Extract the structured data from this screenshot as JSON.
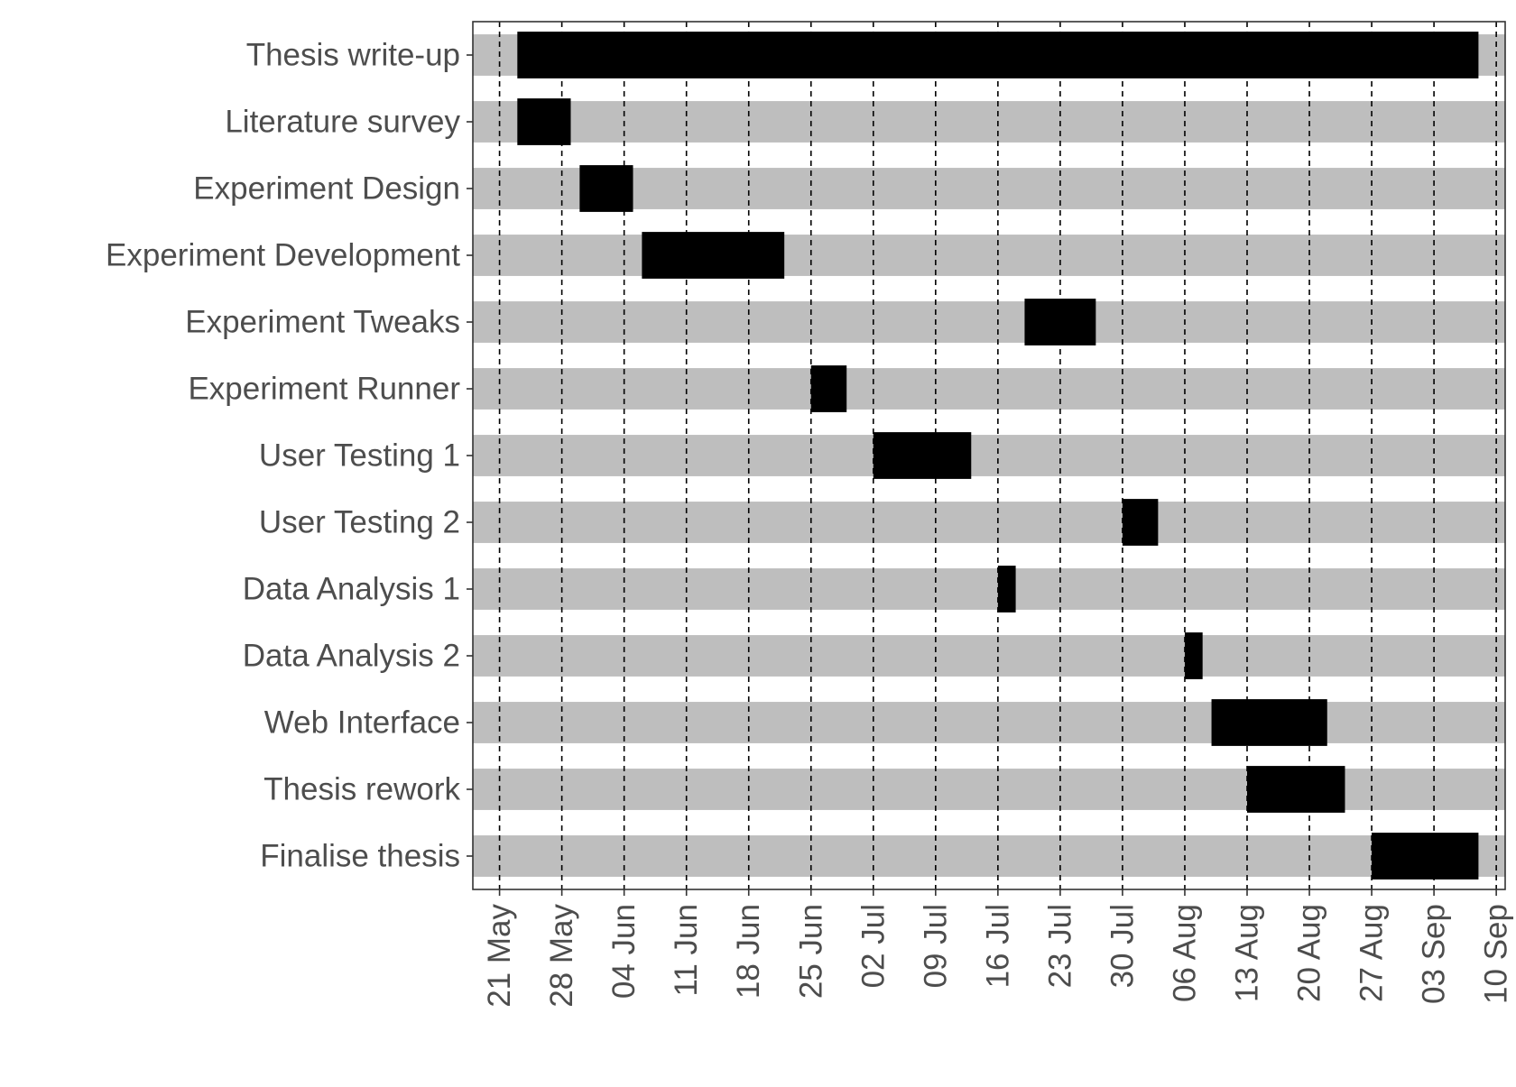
{
  "chart_data": {
    "type": "gantt",
    "title": "",
    "xlabel": "",
    "ylabel": "",
    "xlim": [
      "2018-05-18",
      "2018-09-11"
    ],
    "x_ticks": [
      {
        "date": "2018-05-21",
        "label": "21 May"
      },
      {
        "date": "2018-05-28",
        "label": "28 May"
      },
      {
        "date": "2018-06-04",
        "label": "04 Jun"
      },
      {
        "date": "2018-06-11",
        "label": "11 Jun"
      },
      {
        "date": "2018-06-18",
        "label": "18 Jun"
      },
      {
        "date": "2018-06-25",
        "label": "25 Jun"
      },
      {
        "date": "2018-07-02",
        "label": "02 Jul"
      },
      {
        "date": "2018-07-09",
        "label": "09 Jul"
      },
      {
        "date": "2018-07-16",
        "label": "16 Jul"
      },
      {
        "date": "2018-07-23",
        "label": "23 Jul"
      },
      {
        "date": "2018-07-30",
        "label": "30 Jul"
      },
      {
        "date": "2018-08-06",
        "label": "06 Aug"
      },
      {
        "date": "2018-08-13",
        "label": "13 Aug"
      },
      {
        "date": "2018-08-20",
        "label": "20 Aug"
      },
      {
        "date": "2018-08-27",
        "label": "27 Aug"
      },
      {
        "date": "2018-09-03",
        "label": "03 Sep"
      },
      {
        "date": "2018-09-10",
        "label": "10 Sep"
      }
    ],
    "grid": {
      "vertical_dashed_at_ticks": true,
      "row_bands": true
    },
    "tasks": [
      {
        "name": "Thesis write-up",
        "start": "2018-05-23",
        "end": "2018-09-08"
      },
      {
        "name": "Literature survey",
        "start": "2018-05-23",
        "end": "2018-05-29"
      },
      {
        "name": "Experiment Design",
        "start": "2018-05-30",
        "end": "2018-06-05"
      },
      {
        "name": "Experiment Development",
        "start": "2018-06-06",
        "end": "2018-06-22"
      },
      {
        "name": "Experiment Tweaks",
        "start": "2018-07-19",
        "end": "2018-07-27"
      },
      {
        "name": "Experiment Runner",
        "start": "2018-06-25",
        "end": "2018-06-29"
      },
      {
        "name": "User Testing 1",
        "start": "2018-07-02",
        "end": "2018-07-13"
      },
      {
        "name": "User Testing 2",
        "start": "2018-07-30",
        "end": "2018-08-03"
      },
      {
        "name": "Data Analysis 1",
        "start": "2018-07-16",
        "end": "2018-07-18"
      },
      {
        "name": "Data Analysis 2",
        "start": "2018-08-06",
        "end": "2018-08-08"
      },
      {
        "name": "Web Interface",
        "start": "2018-08-09",
        "end": "2018-08-22"
      },
      {
        "name": "Thesis rework",
        "start": "2018-08-13",
        "end": "2018-08-24"
      },
      {
        "name": "Finalise thesis",
        "start": "2018-08-27",
        "end": "2018-09-08"
      }
    ],
    "colors": {
      "bar": "#000000",
      "band": "#bebebe",
      "text": "#4d4d4d",
      "axis": "#333333",
      "gridline": "#000000",
      "background": "#ffffff"
    }
  }
}
